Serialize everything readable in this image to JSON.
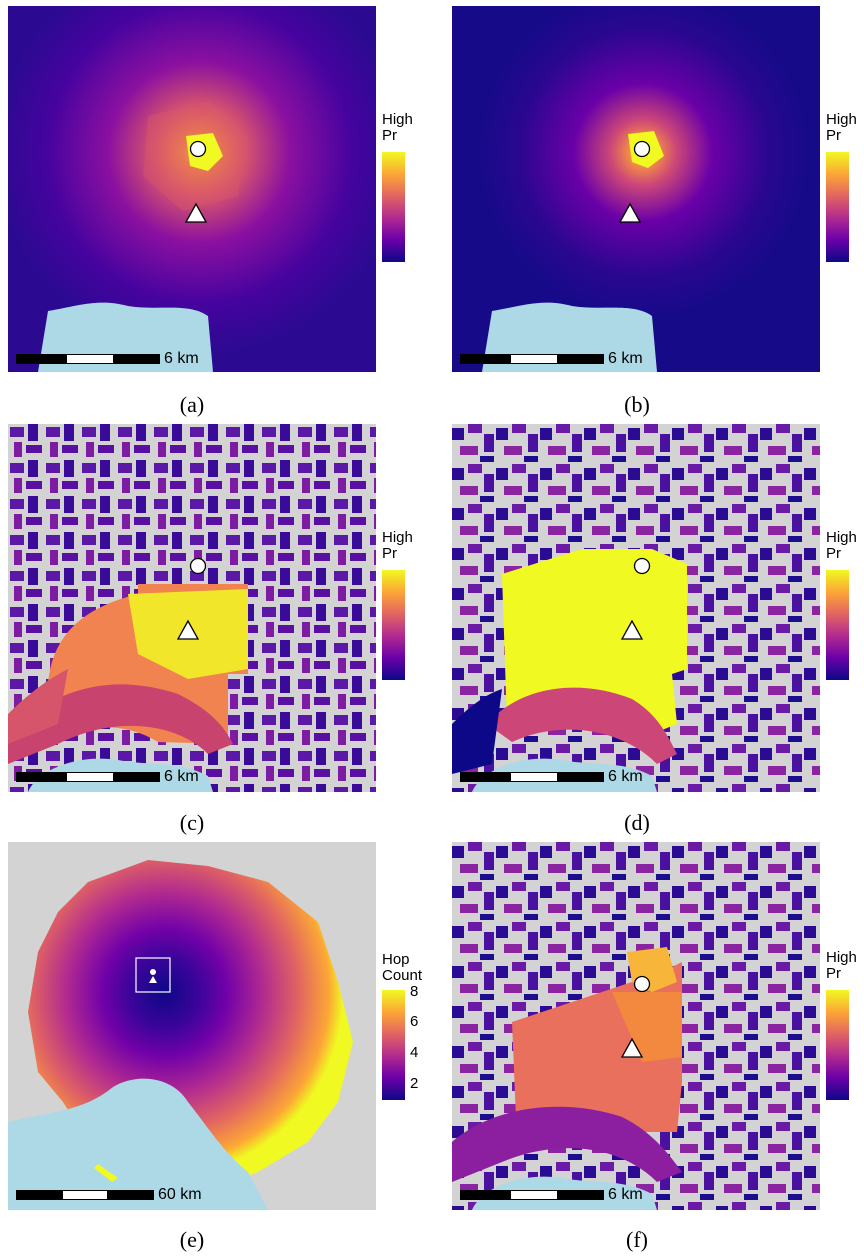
{
  "figure": {
    "panels": [
      {
        "id": "a",
        "caption": "(a)",
        "legend_title_1": "High",
        "legend_title_2": "Pr",
        "scale_label": "6 km"
      },
      {
        "id": "b",
        "caption": "(b)",
        "legend_title_1": "High",
        "legend_title_2": "Pr",
        "scale_label": "6 km"
      },
      {
        "id": "c",
        "caption": "(c)",
        "legend_title_1": "High",
        "legend_title_2": "Pr",
        "scale_label": "6 km"
      },
      {
        "id": "d",
        "caption": "(d)",
        "legend_title_1": "High",
        "legend_title_2": "Pr",
        "scale_label": "6 km"
      },
      {
        "id": "e",
        "caption": "(e)",
        "legend_title_1": "Hop",
        "legend_title_2": "Count",
        "scale_label": "60 km",
        "legend_ticks": [
          "8",
          "6",
          "4",
          "2"
        ]
      },
      {
        "id": "f",
        "caption": "(f)",
        "legend_title_1": "High",
        "legend_title_2": "Pr",
        "scale_label": "6 km"
      }
    ]
  },
  "colors": {
    "plasma_low": "#0d0887",
    "plasma_mid": "#9c179e",
    "plasma_high_mid": "#ed7953",
    "plasma_high": "#f0f921",
    "water": "#add8e6",
    "no_data": "#d3d3d3"
  },
  "markers": {
    "circle": "circle-marker",
    "triangle": "triangle-marker"
  }
}
